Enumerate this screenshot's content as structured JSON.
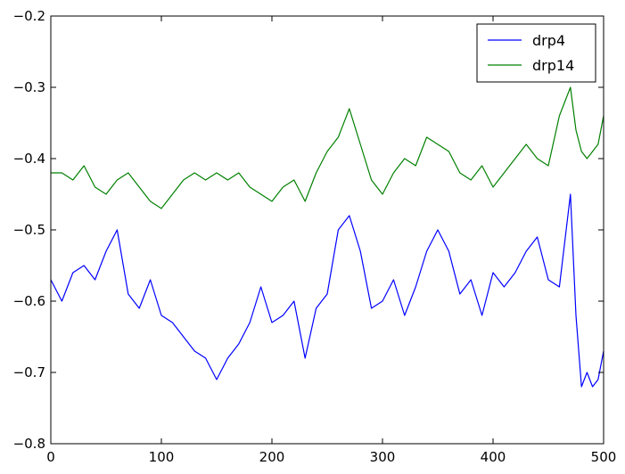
{
  "chart_data": {
    "type": "line",
    "title": "",
    "xlabel": "",
    "ylabel": "",
    "xlim": [
      0,
      500
    ],
    "ylim": [
      -0.8,
      -0.2
    ],
    "grid": false,
    "legend_position": "top-right",
    "xticks": [
      0,
      100,
      200,
      300,
      400,
      500
    ],
    "xtick_labels": [
      "0",
      "100",
      "200",
      "300",
      "400",
      "500"
    ],
    "yticks": [
      -0.8,
      -0.7,
      -0.6,
      -0.5,
      -0.4,
      -0.3,
      -0.2
    ],
    "ytick_labels": [
      "−0.8",
      "−0.7",
      "−0.6",
      "−0.5",
      "−0.4",
      "−0.3",
      "−0.2"
    ],
    "series": [
      {
        "name": "drp4",
        "color": "#0000ff",
        "x": [
          0,
          10,
          20,
          30,
          40,
          50,
          60,
          70,
          80,
          90,
          100,
          110,
          120,
          130,
          140,
          150,
          160,
          170,
          180,
          190,
          200,
          210,
          220,
          230,
          240,
          250,
          260,
          270,
          280,
          290,
          300,
          310,
          320,
          330,
          340,
          350,
          360,
          370,
          380,
          390,
          400,
          410,
          420,
          430,
          440,
          450,
          460,
          470,
          475,
          480,
          485,
          490,
          495,
          500
        ],
        "y": [
          -0.57,
          -0.6,
          -0.56,
          -0.55,
          -0.57,
          -0.53,
          -0.5,
          -0.59,
          -0.61,
          -0.57,
          -0.62,
          -0.63,
          -0.65,
          -0.67,
          -0.68,
          -0.71,
          -0.68,
          -0.66,
          -0.63,
          -0.58,
          -0.63,
          -0.62,
          -0.6,
          -0.68,
          -0.61,
          -0.59,
          -0.5,
          -0.48,
          -0.53,
          -0.61,
          -0.6,
          -0.57,
          -0.62,
          -0.58,
          -0.53,
          -0.5,
          -0.53,
          -0.59,
          -0.57,
          -0.62,
          -0.56,
          -0.58,
          -0.56,
          -0.53,
          -0.51,
          -0.57,
          -0.58,
          -0.45,
          -0.62,
          -0.72,
          -0.7,
          -0.72,
          -0.71,
          -0.67
        ]
      },
      {
        "name": "drp14",
        "color": "#008000",
        "x": [
          0,
          10,
          20,
          30,
          40,
          50,
          60,
          70,
          80,
          90,
          100,
          110,
          120,
          130,
          140,
          150,
          160,
          170,
          180,
          190,
          200,
          210,
          220,
          230,
          240,
          250,
          260,
          270,
          280,
          290,
          300,
          310,
          320,
          330,
          340,
          350,
          360,
          370,
          380,
          390,
          400,
          410,
          420,
          430,
          440,
          450,
          460,
          470,
          475,
          480,
          485,
          490,
          495,
          500
        ],
        "y": [
          -0.42,
          -0.42,
          -0.43,
          -0.41,
          -0.44,
          -0.45,
          -0.43,
          -0.42,
          -0.44,
          -0.46,
          -0.47,
          -0.45,
          -0.43,
          -0.42,
          -0.43,
          -0.42,
          -0.43,
          -0.42,
          -0.44,
          -0.45,
          -0.46,
          -0.44,
          -0.43,
          -0.46,
          -0.42,
          -0.39,
          -0.37,
          -0.33,
          -0.38,
          -0.43,
          -0.45,
          -0.42,
          -0.4,
          -0.41,
          -0.37,
          -0.38,
          -0.39,
          -0.42,
          -0.43,
          -0.41,
          -0.44,
          -0.42,
          -0.4,
          -0.38,
          -0.4,
          -0.41,
          -0.34,
          -0.3,
          -0.36,
          -0.39,
          -0.4,
          -0.39,
          -0.38,
          -0.34
        ]
      }
    ]
  }
}
